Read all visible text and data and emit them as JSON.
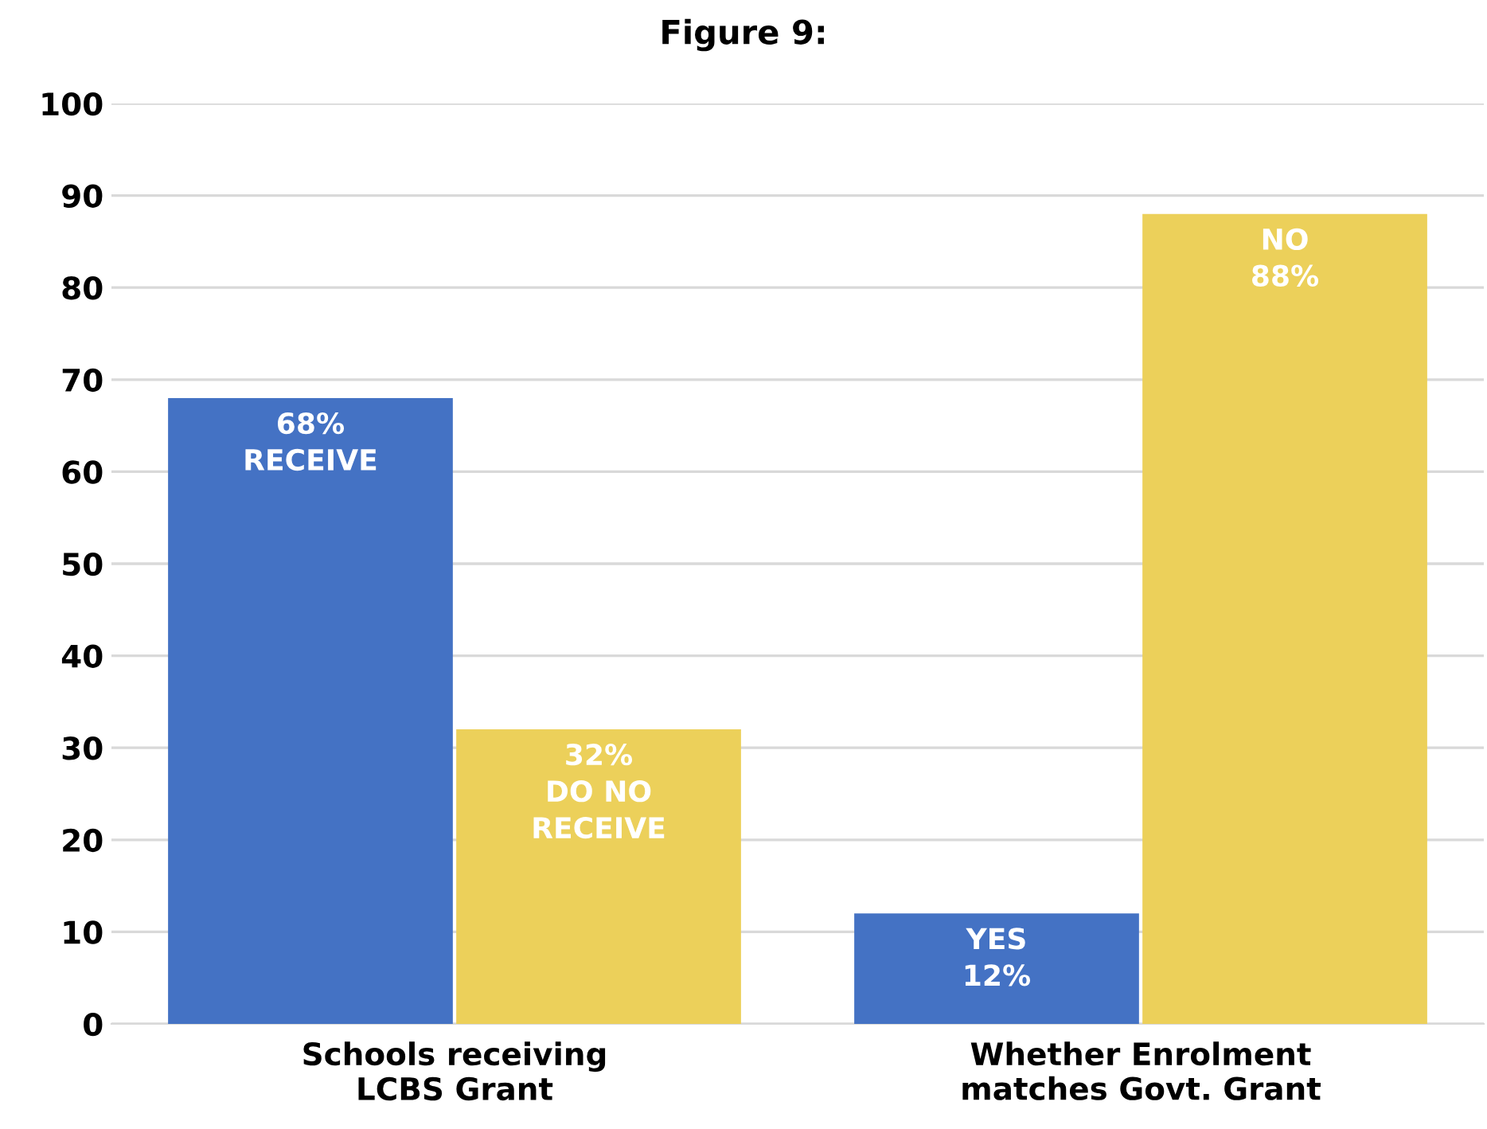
{
  "chart_data": {
    "type": "bar",
    "title": "Figure 9:",
    "categories": [
      "Schools receiving\nLCBS Grant",
      "Whether Enrolment\nmatches Govt. Grant"
    ],
    "series": [
      {
        "color": "#4472c4",
        "values": [
          68,
          12
        ],
        "value_labels": [
          "68%\nRECEIVE",
          "YES\n12%"
        ]
      },
      {
        "color": "#ecd05a",
        "values": [
          32,
          88
        ],
        "value_labels": [
          "32%\nDO NO\nRECEIVE",
          "NO\n88%"
        ]
      }
    ],
    "ylim": [
      0,
      100
    ],
    "yticks": [
      0,
      10,
      20,
      30,
      40,
      50,
      60,
      70,
      80,
      90,
      100
    ],
    "grid": "y",
    "legend": false
  }
}
